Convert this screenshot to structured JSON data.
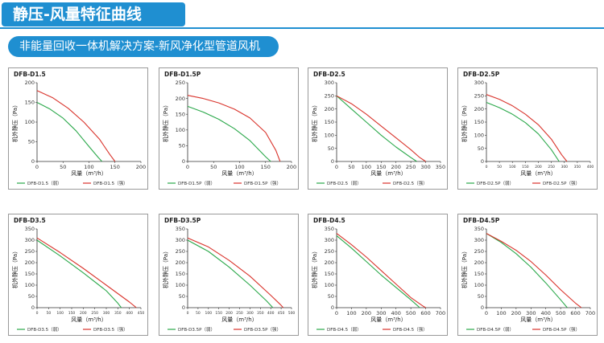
{
  "header": {
    "title": "静压-风量特征曲线"
  },
  "subheader": {
    "text": "非能量回收一体机解决方案-新风净化型管道风机"
  },
  "axis_labels": {
    "x": "风量（m³/h）",
    "y": "机外静压（Pa）"
  },
  "colors": {
    "low": "#2aa84a",
    "high": "#d9332b",
    "brand": "#1f8fd1"
  },
  "chart_data": [
    {
      "type": "line",
      "title": "DFB-D1.5",
      "xlim": [
        0,
        200
      ],
      "ylim": [
        0,
        200
      ],
      "xticks": [
        0,
        50,
        100,
        150,
        200
      ],
      "yticks": [
        0,
        50,
        100,
        150,
        200
      ],
      "series": [
        {
          "name": "DFB-D1.5（弱）",
          "x": [
            0,
            25,
            50,
            75,
            100,
            118,
            125
          ],
          "y": [
            150,
            133,
            110,
            78,
            38,
            10,
            0
          ]
        },
        {
          "name": "DFB-D1.5（强）",
          "x": [
            0,
            30,
            60,
            90,
            120,
            140,
            150
          ],
          "y": [
            180,
            162,
            135,
            100,
            57,
            18,
            0
          ]
        }
      ]
    },
    {
      "type": "line",
      "title": "DFB-D1.5P",
      "xlim": [
        0,
        200
      ],
      "ylim": [
        0,
        250
      ],
      "xticks": [
        0,
        50,
        100,
        150,
        200
      ],
      "yticks": [
        0,
        50,
        100,
        150,
        200,
        250
      ],
      "series": [
        {
          "name": "DFB-D1.5P（弱）",
          "x": [
            0,
            30,
            60,
            90,
            120,
            150,
            160
          ],
          "y": [
            175,
            157,
            134,
            104,
            66,
            15,
            0
          ]
        },
        {
          "name": "DFB-D1.5P（强）",
          "x": [
            0,
            30,
            60,
            90,
            120,
            150,
            170,
            178
          ],
          "y": [
            210,
            200,
            186,
            166,
            138,
            92,
            35,
            0
          ]
        }
      ]
    },
    {
      "type": "line",
      "title": "DFB-D2.5",
      "xlim": [
        0,
        350
      ],
      "ylim": [
        0,
        300
      ],
      "xticks": [
        0,
        50,
        100,
        150,
        200,
        250,
        300,
        350
      ],
      "yticks": [
        0,
        50,
        100,
        150,
        200,
        250,
        300
      ],
      "series": [
        {
          "name": "DFB-D2.5（弱）",
          "x": [
            0,
            50,
            100,
            150,
            200,
            250,
            270
          ],
          "y": [
            250,
            200,
            150,
            100,
            55,
            15,
            0
          ]
        },
        {
          "name": "DFB-D2.5（强）",
          "x": [
            0,
            50,
            100,
            150,
            200,
            250,
            280,
            300
          ],
          "y": [
            250,
            220,
            180,
            135,
            90,
            45,
            15,
            0
          ]
        }
      ]
    },
    {
      "type": "line",
      "title": "DFB-D2.5P",
      "xlim": [
        0,
        400
      ],
      "ylim": [
        0,
        300
      ],
      "xticks": [
        0,
        50,
        100,
        150,
        200,
        250,
        300,
        350,
        400
      ],
      "yticks": [
        0,
        50,
        100,
        150,
        200,
        250,
        300
      ],
      "series": [
        {
          "name": "DFB-D2.5P（弱）",
          "x": [
            0,
            50,
            100,
            150,
            200,
            250,
            280
          ],
          "y": [
            225,
            205,
            180,
            148,
            105,
            45,
            0
          ]
        },
        {
          "name": "DFB-D2.5P（强）",
          "x": [
            0,
            50,
            100,
            150,
            200,
            250,
            290,
            310
          ],
          "y": [
            255,
            237,
            212,
            180,
            140,
            85,
            25,
            0
          ]
        }
      ]
    },
    {
      "type": "line",
      "title": "DFB-D3.5",
      "xlim": [
        0,
        450
      ],
      "ylim": [
        0,
        350
      ],
      "xticks": [
        0,
        50,
        100,
        150,
        200,
        250,
        300,
        350,
        400,
        450
      ],
      "yticks": [
        0,
        50,
        100,
        150,
        200,
        250,
        300,
        350
      ],
      "series": [
        {
          "name": "DFB-D3.5（弱）",
          "x": [
            0,
            100,
            200,
            300,
            350,
            365
          ],
          "y": [
            300,
            230,
            155,
            75,
            20,
            0
          ]
        },
        {
          "name": "DFB-D3.5（强）",
          "x": [
            0,
            100,
            200,
            300,
            400,
            430
          ],
          "y": [
            310,
            245,
            175,
            100,
            25,
            0
          ]
        }
      ]
    },
    {
      "type": "line",
      "title": "DFB-D3.5P",
      "xlim": [
        0,
        500
      ],
      "ylim": [
        0,
        350
      ],
      "xticks": [
        0,
        50,
        100,
        150,
        200,
        250,
        300,
        350,
        400,
        450,
        500
      ],
      "yticks": [
        0,
        50,
        100,
        150,
        200,
        250,
        300,
        350
      ],
      "series": [
        {
          "name": "DFB-D3.5P（弱）",
          "x": [
            0,
            100,
            200,
            300,
            380,
            410
          ],
          "y": [
            300,
            250,
            180,
            100,
            30,
            0
          ]
        },
        {
          "name": "DFB-D3.5P（强）",
          "x": [
            0,
            100,
            200,
            300,
            400,
            445,
            460
          ],
          "y": [
            310,
            270,
            210,
            140,
            55,
            15,
            0
          ]
        }
      ]
    },
    {
      "type": "line",
      "title": "DFB-D4.5",
      "xlim": [
        0,
        700
      ],
      "ylim": [
        0,
        350
      ],
      "xticks": [
        0,
        100,
        200,
        300,
        400,
        500,
        600,
        700
      ],
      "yticks": [
        0,
        50,
        100,
        150,
        200,
        250,
        300,
        350
      ],
      "series": [
        {
          "name": "DFB-D4.5（弱）",
          "x": [
            0,
            100,
            200,
            300,
            400,
            500,
            560
          ],
          "y": [
            320,
            265,
            205,
            145,
            90,
            35,
            0
          ]
        },
        {
          "name": "DFB-D4.5（强）",
          "x": [
            0,
            100,
            200,
            300,
            400,
            500,
            580,
            600
          ],
          "y": [
            330,
            280,
            225,
            165,
            105,
            45,
            8,
            0
          ]
        }
      ]
    },
    {
      "type": "line",
      "title": "DFB-D4.5P",
      "xlim": [
        0,
        700
      ],
      "ylim": [
        0,
        350
      ],
      "xticks": [
        0,
        100,
        200,
        300,
        400,
        500,
        600,
        700
      ],
      "yticks": [
        0,
        50,
        100,
        150,
        200,
        250,
        300,
        350
      ],
      "series": [
        {
          "name": "DFB-D4.5P（弱）",
          "x": [
            0,
            100,
            200,
            300,
            400,
            500,
            545
          ],
          "y": [
            330,
            290,
            240,
            180,
            110,
            35,
            0
          ]
        },
        {
          "name": "DFB-D4.5P（强）",
          "x": [
            0,
            100,
            200,
            300,
            400,
            500,
            600,
            640
          ],
          "y": [
            330,
            295,
            255,
            205,
            145,
            80,
            20,
            0
          ]
        }
      ]
    }
  ]
}
